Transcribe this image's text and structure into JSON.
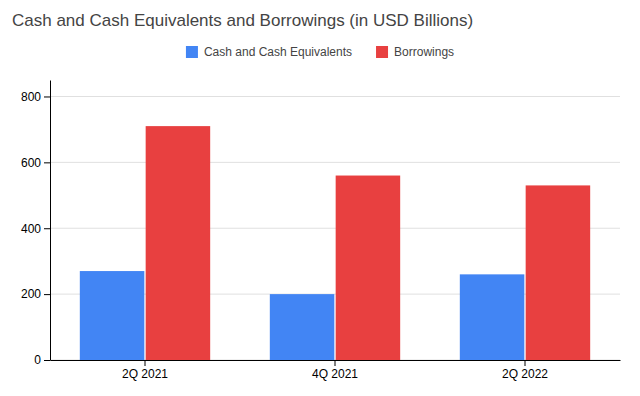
{
  "chart_data": {
    "type": "bar",
    "title": "Cash and Cash Equivalents and Borrowings (in USD Billions)",
    "categories": [
      "2Q 2021",
      "4Q 2021",
      "2Q 2022"
    ],
    "series": [
      {
        "name": "Cash and Cash Equivalents",
        "color": "#4285F4",
        "values": [
          270,
          200,
          260
        ]
      },
      {
        "name": "Borrowings",
        "color": "#E84040",
        "values": [
          710,
          560,
          530
        ]
      }
    ],
    "ylim": [
      0,
      850
    ],
    "yticks": [
      0,
      200,
      400,
      600,
      800
    ],
    "grid": true,
    "legend": "top"
  }
}
